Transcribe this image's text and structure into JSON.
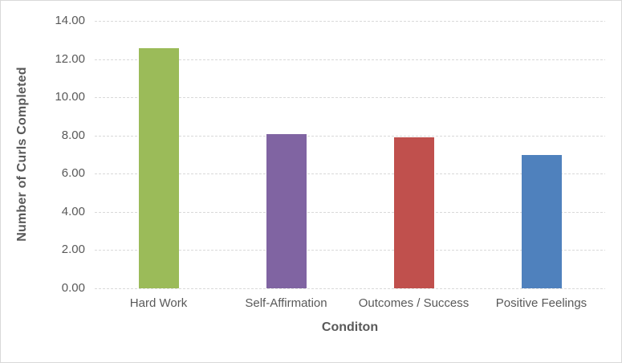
{
  "chart_data": {
    "type": "bar",
    "title": "",
    "categories": [
      "Hard Work",
      "Self-Affirmation",
      "Outcomes / Success",
      "Positive Feelings"
    ],
    "values": [
      12.56,
      8.06,
      7.89,
      6.97
    ],
    "bar_colors": [
      "#9BBB59",
      "#8064A2",
      "#C0504D",
      "#4F81BD"
    ],
    "xlabel": "Conditon",
    "ylabel": "Number of Curls Completed",
    "ylim": [
      0,
      14
    ],
    "ytick_step": 2,
    "ytick_decimals": 2,
    "grid": true,
    "gridline_style": "dashed",
    "legend_position": "none",
    "colors": {
      "text": "#595959",
      "gridline": "#D9D9D9",
      "chart_border": "#D9D9D9",
      "background": "#FFFFFF"
    }
  }
}
